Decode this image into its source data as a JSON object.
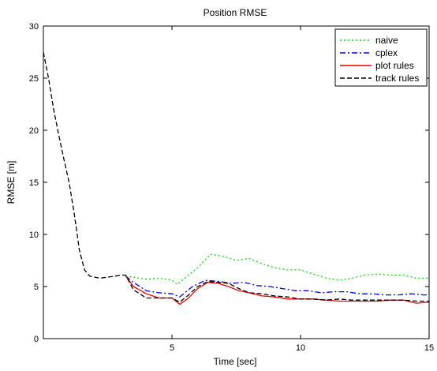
{
  "chart_data": {
    "type": "line",
    "title": "Position RMSE",
    "xlabel": "Time [sec]",
    "ylabel": "RMSE [m]",
    "xlim": [
      0,
      15
    ],
    "ylim": [
      0,
      30
    ],
    "xticks": [
      5,
      10,
      15
    ],
    "yticks": [
      0,
      5,
      10,
      15,
      20,
      25,
      30
    ],
    "grid": false,
    "legend_position": "top-right",
    "series": [
      {
        "name": "naive",
        "color": "#00dd00",
        "style": "dotted",
        "x": [
          3.2,
          3.5,
          4.0,
          4.5,
          5.0,
          5.2,
          5.5,
          6.0,
          6.5,
          7.0,
          7.5,
          8.0,
          8.5,
          9.0,
          9.5,
          10.0,
          10.5,
          11.0,
          11.5,
          12.0,
          12.5,
          13.0,
          13.5,
          14.0,
          14.5,
          15.0
        ],
        "values": [
          6.0,
          5.9,
          5.7,
          5.8,
          5.6,
          5.2,
          5.8,
          6.8,
          8.1,
          7.9,
          7.5,
          7.7,
          7.2,
          6.8,
          6.6,
          6.6,
          6.2,
          5.8,
          5.6,
          5.8,
          6.1,
          6.2,
          6.1,
          6.1,
          5.8,
          5.8
        ]
      },
      {
        "name": "cplex",
        "color": "#0000ee",
        "style": "dashdot",
        "x": [
          3.2,
          3.5,
          4.0,
          4.5,
          5.0,
          5.3,
          5.5,
          5.8,
          6.3,
          6.8,
          7.3,
          7.8,
          8.3,
          8.8,
          9.3,
          9.8,
          10.3,
          10.8,
          11.3,
          11.8,
          12.3,
          12.8,
          13.3,
          13.8,
          14.3,
          14.8,
          15.0
        ],
        "values": [
          6.0,
          5.4,
          4.6,
          4.4,
          4.3,
          4.0,
          4.4,
          5.0,
          5.6,
          5.5,
          5.3,
          5.4,
          5.1,
          5.0,
          4.8,
          4.6,
          4.6,
          4.4,
          4.5,
          4.5,
          4.3,
          4.3,
          4.2,
          4.2,
          4.3,
          4.2,
          4.2
        ]
      },
      {
        "name": "plot rules",
        "color": "#ee0000",
        "style": "solid",
        "x": [
          3.2,
          3.5,
          4.0,
          4.5,
          5.0,
          5.3,
          5.6,
          6.0,
          6.4,
          6.8,
          7.2,
          7.6,
          8.0,
          8.5,
          9.0,
          9.5,
          10.0,
          10.5,
          11.0,
          11.5,
          12.0,
          12.5,
          13.0,
          13.5,
          14.0,
          14.5,
          15.0
        ],
        "values": [
          6.0,
          5.0,
          4.3,
          3.9,
          3.9,
          3.3,
          3.8,
          4.8,
          5.4,
          5.3,
          5.0,
          4.6,
          4.4,
          4.1,
          4.0,
          3.8,
          3.8,
          3.8,
          3.7,
          3.6,
          3.6,
          3.6,
          3.6,
          3.7,
          3.7,
          3.4,
          3.5
        ]
      },
      {
        "name": "track rules",
        "color": "#000000",
        "style": "dashed",
        "x": [
          0,
          0.2,
          0.4,
          0.6,
          0.8,
          1.0,
          1.2,
          1.4,
          1.6,
          1.8,
          2.0,
          2.2,
          2.5,
          2.8,
          3.0,
          3.2,
          3.5,
          4.0,
          4.5,
          5.0,
          5.3,
          5.6,
          6.0,
          6.4,
          6.8,
          7.2,
          7.6,
          8.0,
          8.5,
          9.0,
          9.5,
          10.0,
          10.5,
          11.0,
          11.5,
          12.0,
          12.5,
          13.0,
          13.5,
          14.0,
          14.5,
          15.0
        ],
        "values": [
          27.5,
          25.0,
          22.0,
          19.5,
          17.2,
          15.0,
          12.0,
          8.5,
          6.6,
          6.0,
          5.9,
          5.8,
          5.9,
          6.0,
          6.1,
          6.1,
          4.7,
          3.9,
          3.9,
          3.9,
          3.5,
          4.1,
          5.0,
          5.5,
          5.4,
          5.3,
          4.8,
          4.4,
          4.3,
          4.1,
          4.0,
          3.8,
          3.8,
          3.7,
          3.8,
          3.7,
          3.7,
          3.7,
          3.7,
          3.7,
          3.6,
          3.6
        ]
      }
    ]
  }
}
